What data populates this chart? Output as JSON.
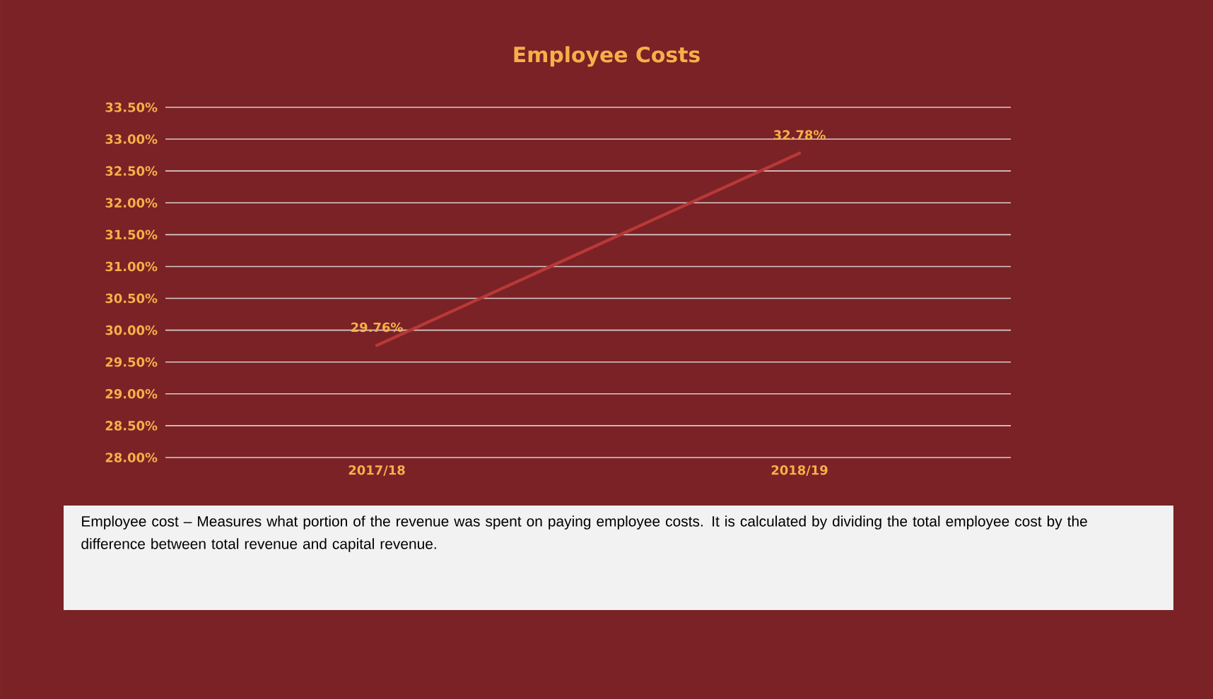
{
  "chart_data": {
    "type": "line",
    "title": "Employee Costs",
    "categories": [
      "2017/18",
      "2018/19"
    ],
    "series": [
      {
        "color": "#b83838",
        "values": [
          29.76,
          32.78
        ],
        "value_labels": [
          "29.76%",
          "32.78%"
        ]
      }
    ],
    "ylim": [
      28,
      33.5
    ],
    "yticks": [
      {
        "value": 28,
        "label": "28.00%"
      },
      {
        "value": 28.5,
        "label": "28.50%"
      },
      {
        "value": 29,
        "label": "29.00%"
      },
      {
        "value": 29.5,
        "label": "29.50%"
      },
      {
        "value": 30,
        "label": "30.00%"
      },
      {
        "value": 30.5,
        "label": "30.50%"
      },
      {
        "value": 31,
        "label": "31.00%"
      },
      {
        "value": 31.5,
        "label": "31.50%"
      },
      {
        "value": 32,
        "label": "32.00%"
      },
      {
        "value": 32.5,
        "label": "32.50%"
      },
      {
        "value": 33,
        "label": "33.00%"
      },
      {
        "value": 33.5,
        "label": "33.50%"
      }
    ],
    "grid": "y",
    "marker": "none",
    "line_style": "solid",
    "annotations": [
      "Employee cost – Measures what portion of the revenue was spent on paying employee costs. It is calculated by dividing the total employee cost by the difference between total revenue and capital revenue."
    ]
  }
}
